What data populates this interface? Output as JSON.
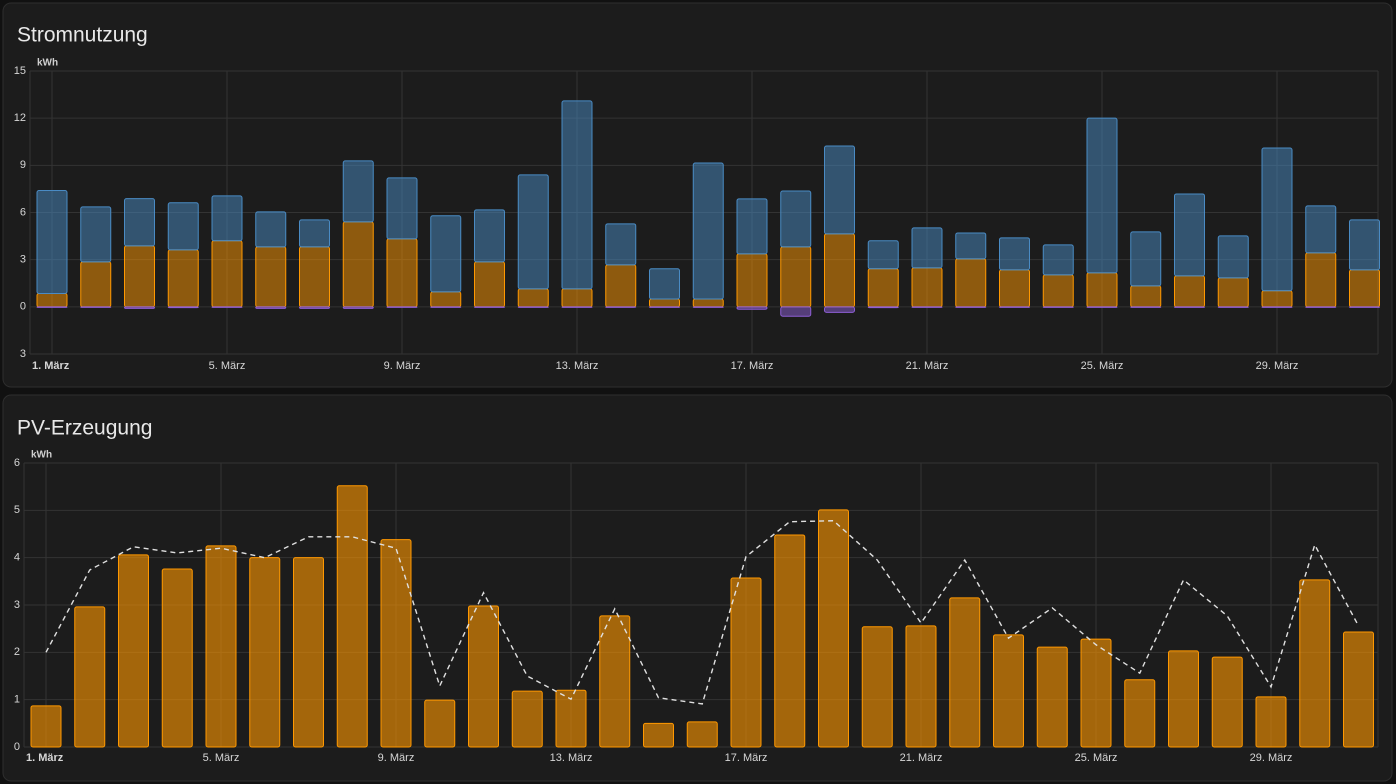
{
  "chart_data": [
    {
      "type": "bar",
      "stacked": true,
      "title": "Stromnutzung",
      "y_label": "kWh",
      "categories": [
        "1. März",
        null,
        null,
        null,
        "5. März",
        null,
        null,
        null,
        "9. März",
        null,
        null,
        null,
        "13. März",
        null,
        null,
        null,
        "17. März",
        null,
        null,
        null,
        "21. März",
        null,
        null,
        null,
        "25. März",
        null,
        null,
        null,
        "29. März",
        null,
        null
      ],
      "series": [
        {
          "color": "#ff9800",
          "values": [
            0.85,
            2.86,
            3.88,
            3.62,
            4.2,
            3.81,
            3.81,
            5.4,
            4.32,
            0.95,
            2.86,
            1.14,
            1.14,
            2.67,
            0.5,
            0.5,
            3.37,
            3.81,
            4.64,
            2.42,
            2.48,
            3.05,
            2.35,
            2.03,
            2.16,
            1.33,
            1.97,
            1.84,
            1.02,
            3.43,
            2.35
          ]
        },
        {
          "color": "#4a8bc4",
          "values": [
            6.55,
            3.5,
            3.0,
            3.0,
            2.86,
            2.23,
            1.72,
            3.88,
            3.88,
            4.84,
            3.31,
            7.25,
            11.96,
            2.61,
            1.92,
            8.65,
            3.5,
            3.56,
            5.59,
            1.78,
            2.54,
            1.65,
            2.04,
            1.91,
            9.84,
            3.44,
            5.21,
            2.67,
            9.08,
            2.99,
            3.18
          ]
        },
        {
          "color": "#8e5fd6",
          "values": [
            -0.02,
            -0.03,
            -0.1,
            -0.05,
            -0.03,
            -0.1,
            -0.1,
            -0.1,
            -0.03,
            -0.02,
            -0.03,
            -0.02,
            -0.02,
            -0.03,
            -0.02,
            -0.02,
            -0.15,
            -0.6,
            -0.35,
            -0.05,
            -0.03,
            -0.02,
            -0.02,
            -0.02,
            -0.03,
            -0.02,
            -0.03,
            -0.03,
            -0.02,
            -0.03,
            -0.03
          ]
        }
      ],
      "ylim": [
        -3,
        15
      ],
      "yticks": [
        {
          "value": -3,
          "label": "3"
        },
        0,
        3,
        6,
        9,
        12,
        15
      ],
      "grid": true
    },
    {
      "type": "bar",
      "title": "PV-Erzeugung",
      "y_label": "kWh",
      "categories": [
        "1. März",
        null,
        null,
        null,
        "5. März",
        null,
        null,
        null,
        "9. März",
        null,
        null,
        null,
        "13. März",
        null,
        null,
        null,
        "17. März",
        null,
        null,
        null,
        "21. März",
        null,
        null,
        null,
        "25. März",
        null,
        null,
        null,
        "29. März",
        null,
        null
      ],
      "series": [
        {
          "color": "#ff9800",
          "values": [
            0.87,
            2.96,
            4.06,
            3.76,
            4.25,
            4.0,
            4.0,
            5.52,
            4.38,
            0.99,
            2.98,
            1.18,
            1.2,
            2.77,
            0.5,
            0.53,
            3.57,
            4.48,
            5.01,
            2.54,
            2.56,
            3.15,
            2.37,
            2.11,
            2.28,
            1.42,
            2.03,
            1.9,
            1.06,
            3.53,
            2.43
          ]
        },
        {
          "type": "line",
          "dashed": true,
          "color": "#e0e0e0",
          "values": [
            2.0,
            3.74,
            4.23,
            4.1,
            4.2,
            4.0,
            4.44,
            4.44,
            4.2,
            1.29,
            3.26,
            1.5,
            1.01,
            2.92,
            1.04,
            0.91,
            4.02,
            4.76,
            4.78,
            3.95,
            2.62,
            3.95,
            2.3,
            2.94,
            2.16,
            1.56,
            3.53,
            2.77,
            1.27,
            4.27,
            2.56
          ]
        }
      ],
      "ylim": [
        0,
        6
      ],
      "yticks": [
        0,
        1,
        2,
        3,
        4,
        5,
        6
      ],
      "grid": true
    }
  ]
}
